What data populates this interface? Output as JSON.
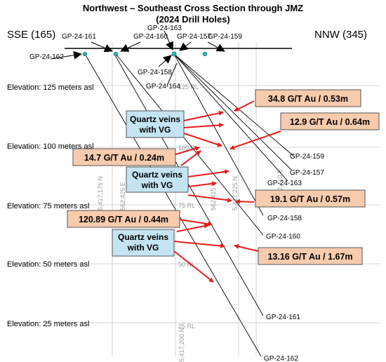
{
  "title": {
    "line1": "Northwest – Southeast Cross Section through JMZ",
    "line2": "(2024 Drill Holes)"
  },
  "directions": {
    "left": "SSE (165)",
    "right": "NNW (345)"
  },
  "elevations": [
    "Elevation: 125 meters asl",
    "Elevation: 100 meters asl",
    "Elevation: 75 meters asl",
    "Elevation: 50 meters asl",
    "Elevation: 25 meters asl"
  ],
  "collar_labels": [
    "GP-24-161",
    "GP-24-160",
    "GP-24-163",
    "GP-24-157",
    "GP-24-159",
    "GP-24-162",
    "GP-24-158",
    "GP-24-164"
  ],
  "hole_end_labels": [
    "GP-24-159",
    "GP-24-157",
    "GP-24-163",
    "GP-24-158",
    "GP-24-160",
    "GP-24-161",
    "GP-24-162"
  ],
  "grid_labels": [
    "125 RL",
    "100 RL",
    "75 RL",
    "50 RL",
    "25 RL",
    "5,417,175 N",
    "562,425 E",
    "562,415 E",
    "562,410 E",
    "5,417,200 N",
    "5,417,225 N"
  ],
  "assays": [
    "34.8 G/T Au / 0.53m",
    "12.9  G/T Au / 0.64m",
    "14.7 G/T Au / 0.24m",
    "19.1  G/T Au / 0.57m",
    "120.89 G/T Au / 0.44m",
    "13.16  G/T Au / 1.67m"
  ],
  "vg_boxes": [
    {
      "line1": "Quartz veins",
      "line2": "with VG"
    },
    {
      "line1": "Quartz veins",
      "line2": "with VG"
    },
    {
      "line1": "Quartz veins",
      "line2": "with VG"
    }
  ],
  "colors": {
    "assay_fill": "#f8cbad",
    "vg_fill": "#c5e4f3",
    "arrow": "#e81c1c",
    "collar": "#2ab5b0"
  }
}
